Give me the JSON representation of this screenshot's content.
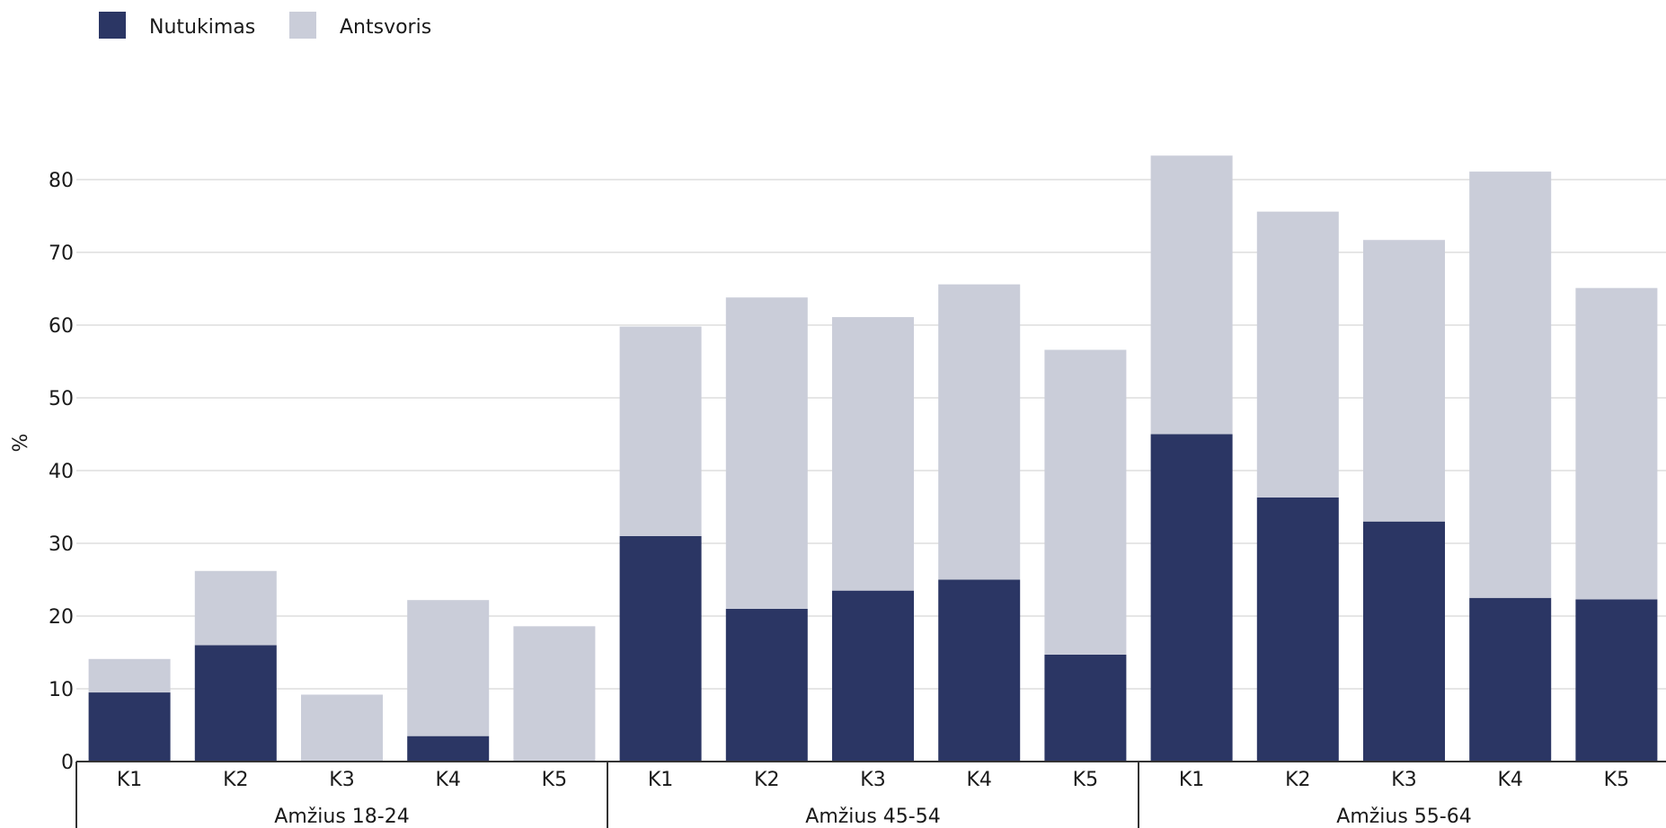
{
  "chart_data": {
    "type": "bar",
    "stacked": true,
    "ylabel": "%",
    "xlabel": "",
    "ylim": [
      0,
      90
    ],
    "yticks": [
      0,
      10,
      20,
      30,
      40,
      50,
      60,
      70,
      80
    ],
    "grid": true,
    "legend_position": "top-left",
    "groups": [
      "Amžius 18-24",
      "Amžius 45-54",
      "Amžius 55-64"
    ],
    "categories": [
      "K1",
      "K2",
      "K3",
      "K4",
      "K5"
    ],
    "series": [
      {
        "name": "Nutukimas",
        "color": "#2b3664",
        "values": [
          [
            9.5,
            16,
            0,
            3.5,
            0
          ],
          [
            31,
            21,
            23.5,
            25,
            14.7
          ],
          [
            45,
            36.3,
            33,
            22.5,
            22.3
          ]
        ]
      },
      {
        "name": "Antsvoris",
        "color": "#cacdd9",
        "values": [
          [
            4.6,
            10.2,
            9.2,
            18.7,
            18.6
          ],
          [
            28.8,
            42.8,
            37.6,
            40.6,
            41.9
          ],
          [
            38.3,
            39.3,
            38.7,
            58.6,
            42.8
          ]
        ]
      }
    ]
  }
}
